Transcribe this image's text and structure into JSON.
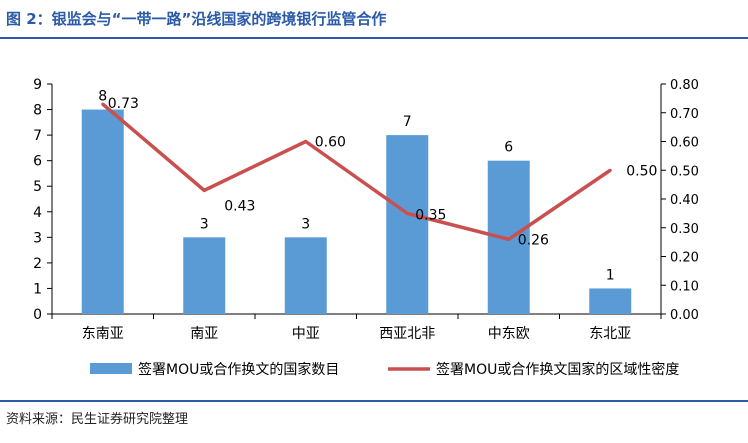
{
  "header": {
    "title": "图 2：银监会与“一带一路”沿线国家的跨境银行监管合作"
  },
  "footer": {
    "source": "资料来源：民生证券研究院整理"
  },
  "colors": {
    "bar": "#5b9bd5",
    "line": "#c9504f",
    "title": "#2a5aa8",
    "axis": "#000000"
  },
  "chart_data": {
    "type": "bar",
    "categories": [
      "东南亚",
      "南亚",
      "中亚",
      "西亚北非",
      "中东欧",
      "东北亚"
    ],
    "series": [
      {
        "name": "签署MOU或合作换文的国家数目",
        "type": "bar",
        "axis": "left",
        "values": [
          8,
          3,
          3,
          7,
          6,
          1
        ]
      },
      {
        "name": "签署MOU或合作换文国家的区域性密度",
        "type": "line",
        "axis": "right",
        "values": [
          0.73,
          0.43,
          0.6,
          0.35,
          0.26,
          0.5
        ]
      }
    ],
    "y_left": {
      "min": 0,
      "max": 9,
      "ticks": [
        "0",
        "1",
        "2",
        "3",
        "4",
        "5",
        "6",
        "7",
        "8",
        "9"
      ]
    },
    "y_right": {
      "min": 0,
      "max": 0.8,
      "ticks": [
        "0.00",
        "0.10",
        "0.20",
        "0.30",
        "0.40",
        "0.50",
        "0.60",
        "0.70",
        "0.80"
      ]
    },
    "bar_labels": [
      "8",
      "3",
      "3",
      "7",
      "6",
      "1"
    ],
    "line_labels": [
      "0.73",
      "0.43",
      "0.60",
      "0.35",
      "0.26",
      "0.50"
    ],
    "grid": false,
    "legend_position": "bottom"
  }
}
